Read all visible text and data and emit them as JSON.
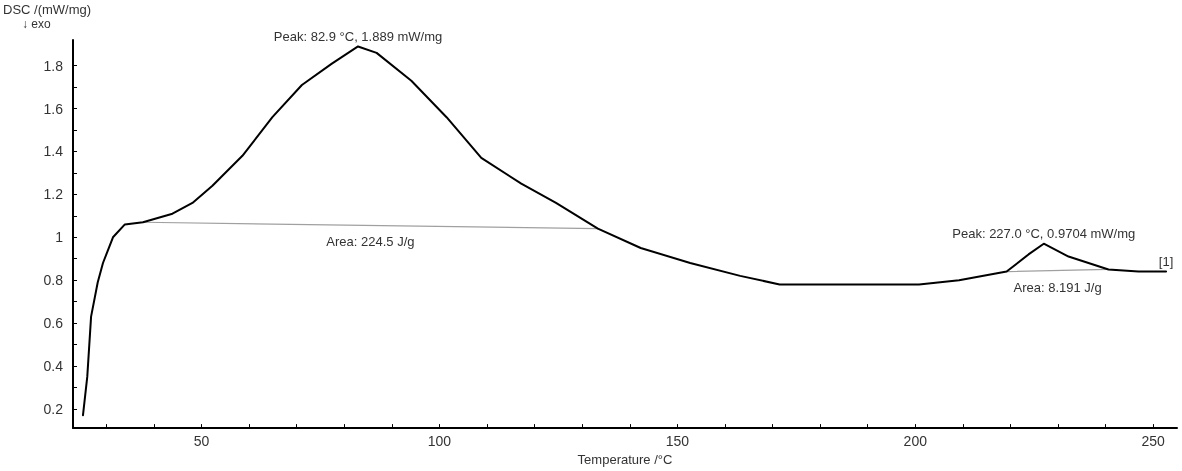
{
  "chart_data": {
    "type": "line",
    "xlabel": "Temperature /°C",
    "ylabel": "DSC /(mW/mg)",
    "xlim": [
      23,
      255
    ],
    "ylim": [
      0.11,
      1.92
    ],
    "xticks": [
      {
        "value": 30,
        "label": null
      },
      {
        "value": 40,
        "label": null
      },
      50,
      {
        "value": 60,
        "label": null
      },
      {
        "value": 70,
        "label": null
      },
      {
        "value": 80,
        "label": null
      },
      {
        "value": 90,
        "label": null
      },
      100,
      {
        "value": 110,
        "label": null
      },
      {
        "value": 120,
        "label": null
      },
      {
        "value": 130,
        "label": null
      },
      {
        "value": 140,
        "label": null
      },
      150,
      {
        "value": 160,
        "label": null
      },
      {
        "value": 170,
        "label": null
      },
      {
        "value": 180,
        "label": null
      },
      {
        "value": 190,
        "label": null
      },
      200,
      {
        "value": 210,
        "label": null
      },
      {
        "value": 220,
        "label": null
      },
      {
        "value": 230,
        "label": null
      },
      {
        "value": 240,
        "label": null
      },
      250
    ],
    "yticks": [
      0.2,
      {
        "value": 0.3,
        "label": null
      },
      0.4,
      {
        "value": 0.5,
        "label": null
      },
      0.6,
      {
        "value": 0.7,
        "label": null
      },
      0.8,
      {
        "value": 0.9,
        "label": null
      },
      1.0,
      {
        "value": 1.1,
        "label": null
      },
      1.2,
      {
        "value": 1.3,
        "label": null
      },
      1.4,
      {
        "value": 1.5,
        "label": null
      },
      1.6,
      {
        "value": 1.7,
        "label": null
      },
      1.8
    ],
    "grid": false,
    "marker": "none",
    "line_style": "solid",
    "series": [
      {
        "color": "#000000",
        "x": [
          25.1,
          26,
          26.8,
          28.2,
          29.3,
          31.4,
          33.9,
          37.7,
          43.9,
          48.1,
          52.3,
          58.6,
          64.9,
          71.1,
          77.4,
          82.9,
          86.8,
          94.1,
          101.5,
          108.8,
          117.2,
          124.5,
          133.3,
          142.3,
          152.7,
          163.2,
          171.5,
          182,
          192.5,
          200.8,
          209.2,
          219.2,
          223.8,
          227,
          232.2,
          240.6,
          246.9,
          252.7
        ],
        "values": [
          0.17,
          0.35,
          0.63,
          0.79,
          0.88,
          1.0,
          1.06,
          1.07,
          1.11,
          1.16,
          1.24,
          1.38,
          1.56,
          1.71,
          1.81,
          1.89,
          1.86,
          1.73,
          1.56,
          1.37,
          1.25,
          1.16,
          1.04,
          0.95,
          0.88,
          0.82,
          0.78,
          0.78,
          0.78,
          0.78,
          0.8,
          0.84,
          0.92,
          0.97,
          0.91,
          0.85,
          0.84,
          0.84
        ]
      },
      {
        "color": "#a0a0a0",
        "x": [
          37.7,
          133.3
        ],
        "values": [
          1.07,
          1.04
        ]
      },
      {
        "color": "#a0a0a0",
        "x": [
          219.2,
          240.6
        ],
        "values": [
          0.84,
          0.85
        ]
      }
    ],
    "annotations": [
      {
        "text": "Peak: 82.9 °C, 1.889 mW/mg",
        "x": 82.9,
        "y": 1.889
      },
      "Area: 224.5 J/g",
      {
        "text": "Peak: 227.0 °C, 0.9704 mW/mg",
        "x": 227,
        "y": 0.9704
      },
      "Area: 8.191 J/g",
      {
        "text": "[1]",
        "x": 252.7,
        "y": 0.84
      },
      "↓ exo"
    ]
  }
}
